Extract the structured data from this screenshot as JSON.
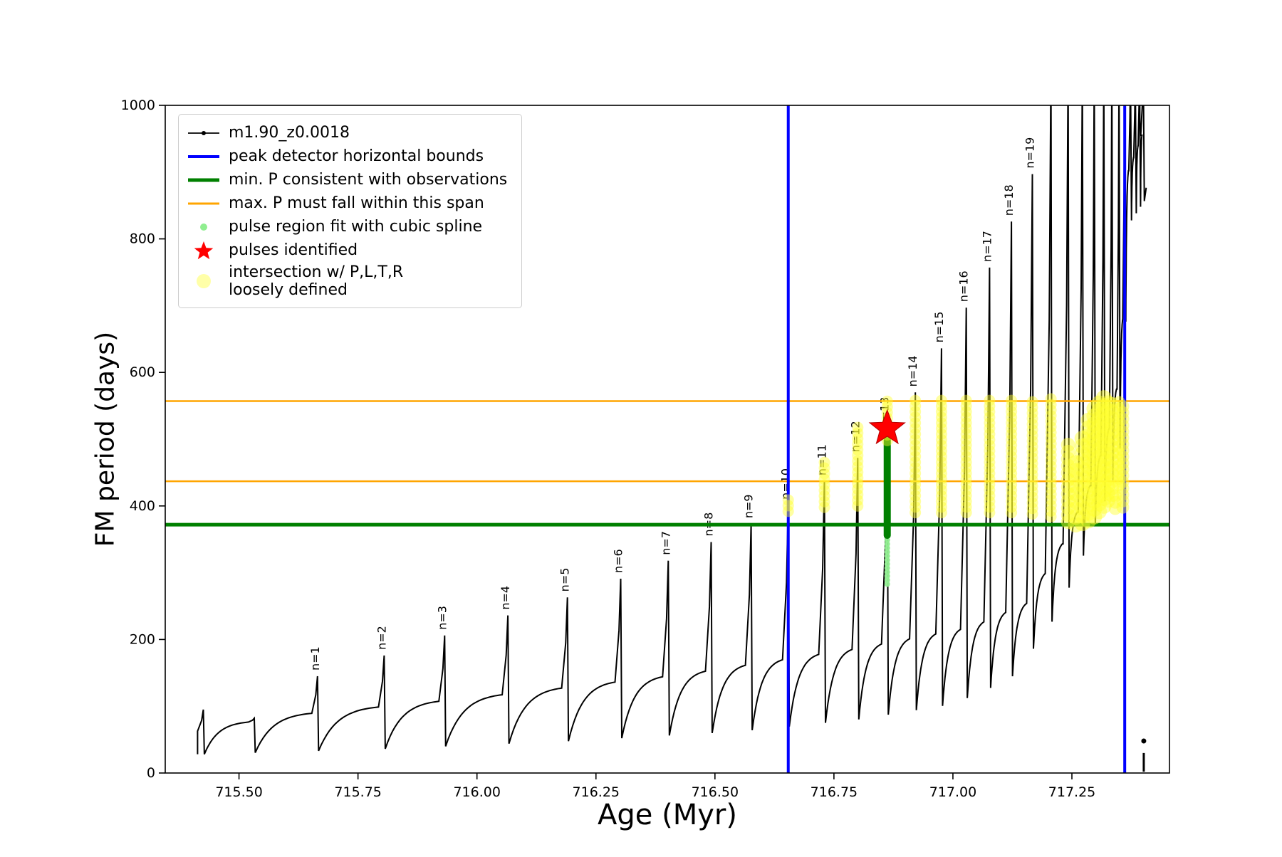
{
  "legend": {
    "items": [
      {
        "marker": "line-dot",
        "color": "#000000",
        "lw": 1.8,
        "label": "m1.90_z0.0018"
      },
      {
        "marker": "line",
        "color": "#0000ff",
        "lw": 4,
        "label": "peak detector horizontal bounds"
      },
      {
        "marker": "line",
        "color": "#008000",
        "lw": 5,
        "label": "min. P consistent with observations"
      },
      {
        "marker": "line",
        "color": "#ffa500",
        "lw": 3,
        "label": "max. P must fall within this span"
      },
      {
        "marker": "dot",
        "color": "#90ee90",
        "r": 5,
        "label": "pulse region fit with cubic spline"
      },
      {
        "marker": "star",
        "color": "#ff0000",
        "r": 14,
        "label": "pulses identified"
      },
      {
        "marker": "big-dot",
        "color": "#ffffa8",
        "r": 10,
        "label": "intersection w/ P,L,T,R\nloosely defined"
      }
    ]
  },
  "chart_data": {
    "type": "line",
    "title": "",
    "xlabel": "Age (Myr)",
    "ylabel": "FM period (days)",
    "xlim": [
      715.345,
      717.455
    ],
    "ylim": [
      0,
      1000
    ],
    "xticks": [
      715.5,
      715.75,
      716.0,
      716.25,
      716.5,
      716.75,
      717.0,
      717.25
    ],
    "yticks": [
      0,
      200,
      400,
      600,
      800,
      1000
    ],
    "series_label": "m1.90_z0.0018",
    "colors": {
      "curve": "#000000",
      "bounds": "#0000ff",
      "min_p": "#008000",
      "max_p": "#ffa500",
      "spline": "#90ee90",
      "pulse_star": "#ff0000",
      "intersection": "#ffff2e"
    },
    "pulses": [
      {
        "x": 715.425,
        "peak": 95
      },
      {
        "x": 715.532,
        "peak": 82
      },
      {
        "x": 715.665,
        "peak": 145,
        "label": "n=1"
      },
      {
        "x": 715.805,
        "peak": 176,
        "label": "n=2"
      },
      {
        "x": 715.932,
        "peak": 206,
        "label": "n=3"
      },
      {
        "x": 716.065,
        "peak": 236,
        "label": "n=4"
      },
      {
        "x": 716.19,
        "peak": 263,
        "label": "n=5"
      },
      {
        "x": 716.302,
        "peak": 291,
        "label": "n=6"
      },
      {
        "x": 716.402,
        "peak": 318,
        "label": "n=7"
      },
      {
        "x": 716.492,
        "peak": 346,
        "label": "n=8"
      },
      {
        "x": 716.576,
        "peak": 373,
        "label": "n=9"
      },
      {
        "x": 716.654,
        "peak": 401,
        "label": "n=10"
      },
      {
        "x": 716.73,
        "peak": 437,
        "label": "n=11"
      },
      {
        "x": 716.8,
        "peak": 472,
        "label": "n=12"
      },
      {
        "x": 716.862,
        "peak": 508,
        "label": "n=13"
      },
      {
        "x": 716.921,
        "peak": 570,
        "label": "n=14"
      },
      {
        "x": 716.976,
        "peak": 636,
        "label": "n=15"
      },
      {
        "x": 717.028,
        "peak": 697,
        "label": "n=16"
      },
      {
        "x": 717.077,
        "peak": 757,
        "label": "n=17"
      },
      {
        "x": 717.123,
        "peak": 826,
        "label": "n=18"
      },
      {
        "x": 717.167,
        "peak": 897,
        "label": "n=19"
      },
      {
        "x": 717.206,
        "peak": 1060
      },
      {
        "x": 717.242,
        "peak": 1060
      },
      {
        "x": 717.272,
        "peak": 1060
      },
      {
        "x": 717.297,
        "peak": 1060
      },
      {
        "x": 717.317,
        "peak": 1060
      },
      {
        "x": 717.334,
        "peak": 1060
      },
      {
        "x": 717.349,
        "peak": 1060
      },
      {
        "x": 717.361,
        "peak": 1060
      },
      {
        "x": 717.373,
        "peak": 1060
      },
      {
        "x": 717.383,
        "peak": 1060
      },
      {
        "x": 717.392,
        "peak": 1060
      },
      {
        "x": 717.4,
        "peak": 1060
      }
    ],
    "baseline": {
      "recovery_k": 3.2,
      "dip_points": [
        [
          715.42,
          28
        ],
        [
          715.8,
          36
        ],
        [
          716.2,
          48
        ],
        [
          716.55,
          62
        ],
        [
          716.8,
          80
        ],
        [
          717.0,
          103
        ],
        [
          717.12,
          140
        ],
        [
          717.2,
          215
        ],
        [
          717.26,
          300
        ],
        [
          717.31,
          390
        ],
        [
          717.345,
          455
        ],
        [
          717.358,
          520
        ],
        [
          717.368,
          820
        ],
        [
          717.41,
          865
        ]
      ],
      "plateau_points": [
        [
          715.42,
          62
        ],
        [
          715.6,
          85
        ],
        [
          716.0,
          112
        ],
        [
          716.45,
          148
        ],
        [
          716.8,
          185
        ],
        [
          717.05,
          218
        ],
        [
          717.17,
          255
        ],
        [
          717.24,
          340
        ],
        [
          717.3,
          435
        ],
        [
          717.34,
          530
        ],
        [
          717.358,
          620
        ],
        [
          717.372,
          900
        ],
        [
          717.41,
          975
        ]
      ]
    },
    "vlines": [
      {
        "x": 716.654,
        "color": "#0000ff",
        "width": 4,
        "name": "peak-detector-left-bound"
      },
      {
        "x": 717.361,
        "color": "#0000ff",
        "width": 4,
        "name": "peak-detector-right-bound"
      }
    ],
    "hlines": [
      {
        "y": 557,
        "color": "#ffa500",
        "width": 2.5,
        "name": "max-p-span-upper"
      },
      {
        "y": 437,
        "color": "#ffa500",
        "width": 2.5,
        "name": "max-p-span-lower"
      },
      {
        "y": 372,
        "color": "#008000",
        "width": 5,
        "name": "min-p-consistent"
      }
    ],
    "spline_dots": {
      "x": 716.862,
      "y_start": 283,
      "y_end": 510,
      "step": 6,
      "r": 4,
      "color": "#90ee90"
    },
    "pulse_bar": {
      "x": 716.862,
      "y1": 356,
      "y2": 506,
      "width": 10,
      "color": "#008000"
    },
    "star": {
      "x": 716.862,
      "y": 516,
      "outer_r": 26,
      "color": "#ff0000"
    },
    "yellow_streaks": [
      {
        "x": 716.654,
        "y1": 392,
        "y2": 414,
        "r": 8
      },
      {
        "x": 716.73,
        "y1": 398,
        "y2": 468,
        "r": 8
      },
      {
        "x": 716.8,
        "y1": 400,
        "y2": 520,
        "r": 8
      },
      {
        "x": 716.862,
        "y1": 498,
        "y2": 562,
        "r": 8
      },
      {
        "x": 716.921,
        "y1": 390,
        "y2": 564,
        "r": 8
      },
      {
        "x": 716.976,
        "y1": 390,
        "y2": 564,
        "r": 8
      },
      {
        "x": 717.028,
        "y1": 390,
        "y2": 564,
        "r": 8
      },
      {
        "x": 717.077,
        "y1": 390,
        "y2": 564,
        "r": 8
      },
      {
        "x": 717.123,
        "y1": 390,
        "y2": 564,
        "r": 8
      },
      {
        "x": 717.167,
        "y1": 388,
        "y2": 564,
        "r": 8
      },
      {
        "x": 717.206,
        "y1": 384,
        "y2": 564,
        "r": 8
      },
      {
        "x": 717.242,
        "y1": 376,
        "y2": 492,
        "r": 10
      },
      {
        "x": 717.258,
        "y1": 372,
        "y2": 470,
        "r": 11
      },
      {
        "x": 717.272,
        "y1": 374,
        "y2": 505,
        "r": 11
      },
      {
        "x": 717.285,
        "y1": 378,
        "y2": 535,
        "r": 11
      },
      {
        "x": 717.297,
        "y1": 384,
        "y2": 552,
        "r": 11
      },
      {
        "x": 717.307,
        "y1": 392,
        "y2": 560,
        "r": 11
      },
      {
        "x": 717.317,
        "y1": 400,
        "y2": 562,
        "r": 11
      },
      {
        "x": 717.326,
        "y1": 408,
        "y2": 562,
        "r": 10
      },
      {
        "x": 717.334,
        "y1": 416,
        "y2": 562,
        "r": 10
      },
      {
        "x": 717.341,
        "y1": 396,
        "y2": 424,
        "r": 9
      },
      {
        "x": 717.349,
        "y1": 432,
        "y2": 562,
        "r": 9
      },
      {
        "x": 717.357,
        "y1": 398,
        "y2": 558,
        "r": 9
      }
    ],
    "tail_mark": {
      "x": 717.401,
      "line_y1": 2,
      "line_y2": 30,
      "dot_y": 48
    }
  }
}
